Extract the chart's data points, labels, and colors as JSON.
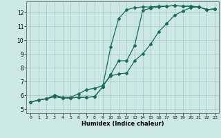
{
  "xlabel": "Humidex (Indice chaleur)",
  "xlim": [
    -0.5,
    23.5
  ],
  "ylim": [
    4.7,
    12.8
  ],
  "yticks": [
    5,
    6,
    7,
    8,
    9,
    10,
    11,
    12
  ],
  "xticks": [
    0,
    1,
    2,
    3,
    4,
    5,
    6,
    7,
    8,
    9,
    10,
    11,
    12,
    13,
    14,
    15,
    16,
    17,
    18,
    19,
    20,
    21,
    22,
    23
  ],
  "bg_color": "#cce8e4",
  "grid_color": "#aaccc8",
  "line_color": "#1a6b5a",
  "line1_x": [
    0,
    1,
    2,
    3,
    4,
    5,
    6,
    7,
    8,
    9,
    10,
    11,
    12,
    13,
    14,
    15,
    16,
    17,
    18,
    19,
    20,
    21,
    22,
    23
  ],
  "line1_y": [
    5.5,
    5.65,
    5.75,
    5.9,
    5.8,
    5.8,
    5.85,
    5.85,
    5.9,
    6.6,
    9.5,
    11.55,
    12.2,
    12.35,
    12.4,
    12.4,
    12.45,
    12.45,
    12.5,
    12.45,
    12.45,
    12.4,
    12.2,
    12.25
  ],
  "line2_x": [
    0,
    1,
    2,
    3,
    4,
    5,
    6,
    7,
    8,
    9,
    10,
    11,
    12,
    13,
    14,
    15,
    16,
    17,
    18,
    19,
    20,
    21,
    22,
    23
  ],
  "line2_y": [
    5.5,
    5.65,
    5.75,
    5.9,
    5.8,
    5.8,
    5.85,
    5.85,
    5.9,
    6.6,
    7.5,
    8.5,
    8.5,
    9.6,
    12.15,
    12.3,
    12.4,
    12.45,
    12.5,
    12.45,
    12.45,
    12.4,
    12.2,
    12.25
  ],
  "line3_x": [
    0,
    1,
    2,
    3,
    4,
    5,
    6,
    7,
    8,
    9,
    10,
    11,
    12,
    13,
    14,
    15,
    16,
    17,
    18,
    19,
    20,
    21,
    22,
    23
  ],
  "line3_y": [
    5.5,
    5.65,
    5.75,
    6.0,
    5.85,
    5.85,
    6.1,
    6.4,
    6.5,
    6.7,
    7.4,
    7.55,
    7.6,
    8.5,
    9.0,
    9.7,
    10.6,
    11.2,
    11.8,
    12.1,
    12.35,
    12.4,
    12.2,
    12.25
  ]
}
